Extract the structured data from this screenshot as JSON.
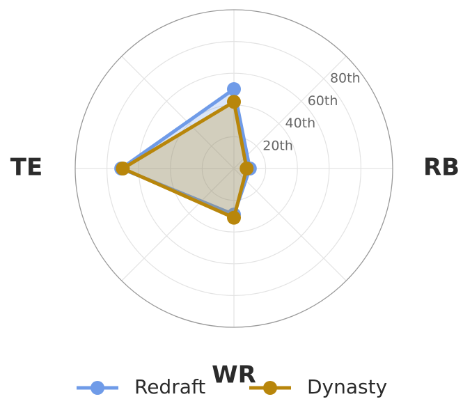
{
  "chart_data": {
    "type": "radar",
    "categories": [
      null,
      "RB",
      "WR",
      "TE"
    ],
    "series": [
      {
        "name": "Redraft",
        "color": "#6f9be8",
        "values": [
          50,
          10,
          29,
          71
        ]
      },
      {
        "name": "Dynasty",
        "color": "#b8860b",
        "values": [
          42,
          8,
          31,
          70
        ]
      }
    ],
    "ylim": [
      0,
      100
    ],
    "yticks": [
      {
        "value": 20,
        "label": "20th"
      },
      {
        "value": 40,
        "label": "40th"
      },
      {
        "value": 60,
        "label": "60th"
      },
      {
        "value": 80,
        "label": "80th"
      }
    ],
    "grid": true,
    "legend": "bottom"
  }
}
